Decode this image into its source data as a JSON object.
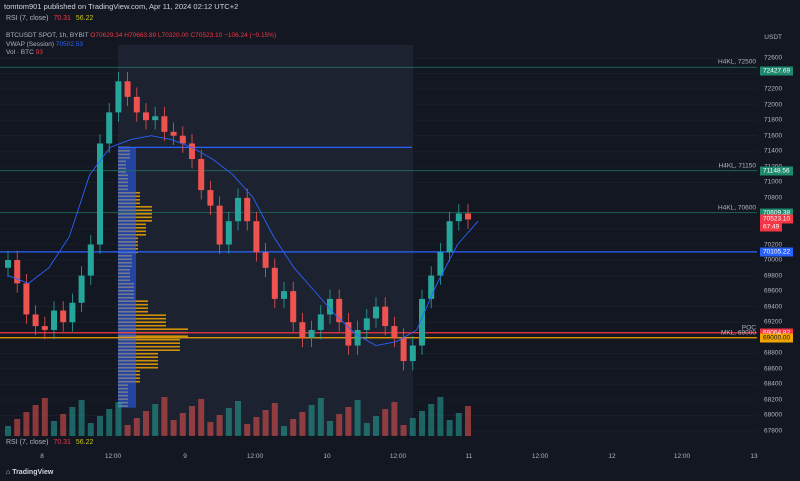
{
  "publisher": {
    "text": "tomtom901 published on TradingView.com, Apr 11, 2024 02:12 UTC+2"
  },
  "rsi_top": {
    "label": "RSI (7, close)",
    "v1": "70.31",
    "v2": "56.22"
  },
  "legend": {
    "symbol": "BTCUSDT SPOT, 1h, BYBIT",
    "o": "O70629.34",
    "h": "H70663.89",
    "l": "L70320.00",
    "c": "C70523.10",
    "chg": "−106.24 (−0.15%)",
    "vwap_label": "VWAP (Session)",
    "vwap_value": "70502.53",
    "vol_label": "Vol · BTC",
    "vol_value": "93"
  },
  "currency": "USDT",
  "price_axis": [
    "72600",
    "72400",
    "72200",
    "72000",
    "71800",
    "71600",
    "71400",
    "71200",
    "71000",
    "70800",
    "70600",
    "70400",
    "70200",
    "70000",
    "69800",
    "69600",
    "69400",
    "69200",
    "69000",
    "68800",
    "68600",
    "68400",
    "68200",
    "68000",
    "67800"
  ],
  "price_tags": [
    {
      "text": "72427.69",
      "color": "#1e8a6e",
      "price": 72427.69
    },
    {
      "text": "71148.56",
      "color": "#1e8a6e",
      "price": 71148.56
    },
    {
      "text": "70609.38",
      "color": "#1e8a6e",
      "price": 70609.38
    },
    {
      "text": "70523.10",
      "color": "#f23645",
      "price": 70523.1
    },
    {
      "text": "67:49",
      "color": "#f23645",
      "price": 70420
    },
    {
      "text": "70105.22",
      "color": "#2962ff",
      "price": 70105.22
    },
    {
      "text": "69064.82",
      "color": "#f23645",
      "price": 69064.82
    },
    {
      "text": "69000.00",
      "color": "#f0a500",
      "price": 69000.0
    }
  ],
  "hlines": [
    {
      "label": "H4KL, 72500",
      "price": 72480,
      "color": "#1e6e5a"
    },
    {
      "label": "H4KL, 71150",
      "price": 71150,
      "color": "#1e6e5a"
    },
    {
      "label": "H4KL, 70600",
      "price": 70610,
      "color": "#1e6e5a"
    },
    {
      "label": "",
      "price": 70105,
      "color": "#2962ff"
    },
    {
      "label": "POC",
      "price": 69064,
      "color": "#f23645"
    },
    {
      "label": "MKL, 69000",
      "price": 69000,
      "color": "#f0a500"
    }
  ],
  "rsi_bot": {
    "label": "RSI (7, close)",
    "v1": "70.31",
    "v2": "56.22"
  },
  "time_axis": [
    "8",
    "12:00",
    "9",
    "12:00",
    "10",
    "12:00",
    "11",
    "12:00",
    "12",
    "12:00",
    "13"
  ],
  "footer": {
    "brand": "TradingView"
  },
  "chart_data": {
    "type": "candlestick",
    "symbol": "BTCUSDT SPOT, 1h, BYBIT",
    "ylim": [
      67800,
      72700
    ],
    "vwap_path_prices": [
      69800,
      69700,
      69900,
      70300,
      71100,
      71450,
      71550,
      71600,
      71550,
      71450,
      71300,
      71100,
      70800,
      70300,
      69900,
      69600,
      69300,
      69050,
      68900,
      68950,
      69100,
      69700,
      70200,
      70500
    ],
    "candles_close": [
      70000,
      69700,
      69300,
      69150,
      69100,
      69350,
      69200,
      69450,
      69800,
      70200,
      71500,
      71900,
      72300,
      72100,
      71900,
      71800,
      71850,
      71650,
      71600,
      71500,
      71300,
      70900,
      70700,
      70200,
      70500,
      70800,
      70500,
      70100,
      69900,
      69500,
      69600,
      69200,
      69000,
      69100,
      69300,
      69500,
      69200,
      68900,
      69100,
      69250,
      69400,
      69150,
      69000,
      68700,
      68900,
      69500,
      69800,
      70100,
      70500,
      70600,
      70523
    ]
  }
}
